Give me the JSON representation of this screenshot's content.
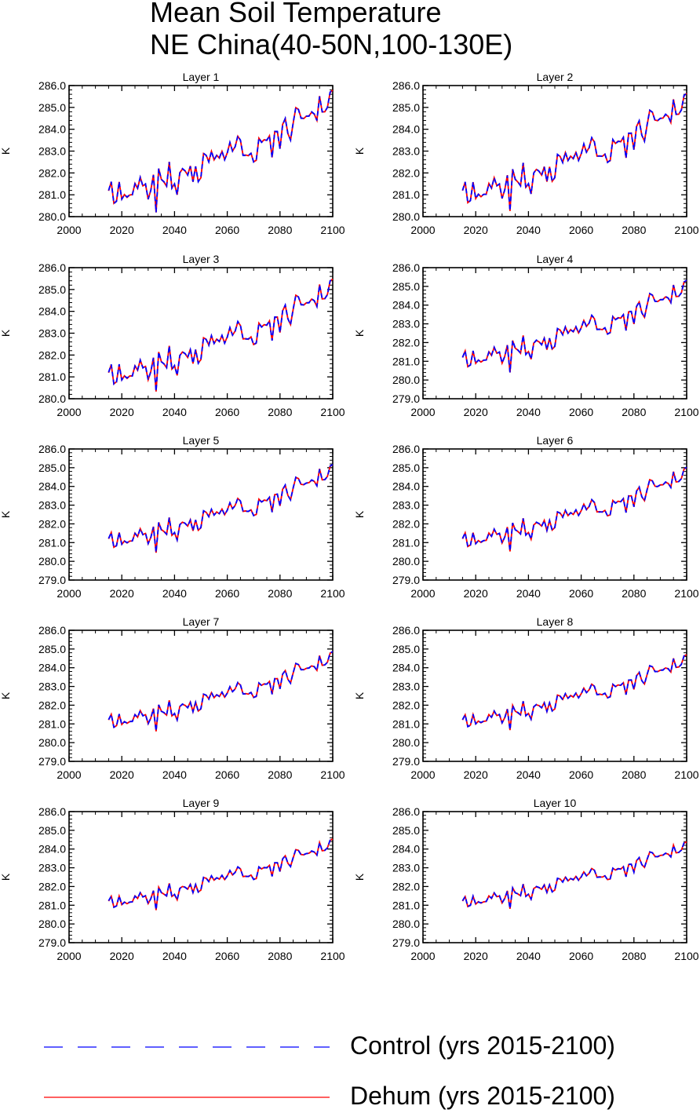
{
  "title": {
    "line1": "Mean Soil Temperature",
    "line2": "NE China(40-50N,100-130E)"
  },
  "legend": [
    {
      "label": "Control (yrs 2015-2100)",
      "color": "#0000ff",
      "style": "dashed"
    },
    {
      "label": "Dehum (yrs 2015-2100)",
      "color": "#ff0000",
      "style": "solid"
    }
  ],
  "chart_data": [
    {
      "type": "line",
      "title": "Layer 1",
      "ylabel": "K",
      "xlim": [
        2000,
        2100
      ],
      "ylim": [
        280.0,
        286.0
      ],
      "yticks": [
        "280.0",
        "281.0",
        "282.0",
        "283.0",
        "284.0",
        "285.0",
        "286.0"
      ],
      "xticks": [
        "2000",
        "2020",
        "2040",
        "2060",
        "2080",
        "2100"
      ]
    },
    {
      "type": "line",
      "title": "Layer 2",
      "ylabel": "K",
      "xlim": [
        2000,
        2100
      ],
      "ylim": [
        280.0,
        286.0
      ],
      "yticks": [
        "280.0",
        "281.0",
        "282.0",
        "283.0",
        "284.0",
        "285.0",
        "286.0"
      ],
      "xticks": [
        "2000",
        "2020",
        "2040",
        "2060",
        "2080",
        "2100"
      ]
    },
    {
      "type": "line",
      "title": "Layer 3",
      "ylabel": "K",
      "xlim": [
        2000,
        2100
      ],
      "ylim": [
        280.0,
        286.0
      ],
      "yticks": [
        "280.0",
        "281.0",
        "282.0",
        "283.0",
        "284.0",
        "285.0",
        "286.0"
      ],
      "xticks": [
        "2000",
        "2020",
        "2040",
        "2060",
        "2080",
        "2100"
      ]
    },
    {
      "type": "line",
      "title": "Layer 4",
      "ylabel": "K",
      "xlim": [
        2000,
        2100
      ],
      "ylim": [
        279.0,
        286.0
      ],
      "yticks": [
        "279.0",
        "280.0",
        "281.0",
        "282.0",
        "283.0",
        "284.0",
        "285.0",
        "286.0"
      ],
      "xticks": [
        "2000",
        "2020",
        "2040",
        "2060",
        "2080",
        "2100"
      ]
    },
    {
      "type": "line",
      "title": "Layer 5",
      "ylabel": "K",
      "xlim": [
        2000,
        2100
      ],
      "ylim": [
        279.0,
        286.0
      ],
      "yticks": [
        "279.0",
        "280.0",
        "281.0",
        "282.0",
        "283.0",
        "284.0",
        "285.0",
        "286.0"
      ],
      "xticks": [
        "2000",
        "2020",
        "2040",
        "2060",
        "2080",
        "2100"
      ]
    },
    {
      "type": "line",
      "title": "Layer 6",
      "ylabel": "K",
      "xlim": [
        2000,
        2100
      ],
      "ylim": [
        279.0,
        286.0
      ],
      "yticks": [
        "279.0",
        "280.0",
        "281.0",
        "282.0",
        "283.0",
        "284.0",
        "285.0",
        "286.0"
      ],
      "xticks": [
        "2000",
        "2020",
        "2040",
        "2060",
        "2080",
        "2100"
      ]
    },
    {
      "type": "line",
      "title": "Layer 7",
      "ylabel": "K",
      "xlim": [
        2000,
        2100
      ],
      "ylim": [
        279.0,
        286.0
      ],
      "yticks": [
        "279.0",
        "280.0",
        "281.0",
        "282.0",
        "283.0",
        "284.0",
        "285.0",
        "286.0"
      ],
      "xticks": [
        "2000",
        "2020",
        "2040",
        "2060",
        "2080",
        "2100"
      ]
    },
    {
      "type": "line",
      "title": "Layer 8",
      "ylabel": "K",
      "xlim": [
        2000,
        2100
      ],
      "ylim": [
        279.0,
        286.0
      ],
      "yticks": [
        "279.0",
        "280.0",
        "281.0",
        "282.0",
        "283.0",
        "284.0",
        "285.0",
        "286.0"
      ],
      "xticks": [
        "2000",
        "2020",
        "2040",
        "2060",
        "2080",
        "2100"
      ]
    },
    {
      "type": "line",
      "title": "Layer 9",
      "ylabel": "K",
      "xlim": [
        2000,
        2100
      ],
      "ylim": [
        279.0,
        286.0
      ],
      "yticks": [
        "279.0",
        "280.0",
        "281.0",
        "282.0",
        "283.0",
        "284.0",
        "285.0",
        "286.0"
      ],
      "xticks": [
        "2000",
        "2020",
        "2040",
        "2060",
        "2080",
        "2100"
      ]
    },
    {
      "type": "line",
      "title": "Layer 10",
      "ylabel": "K",
      "xlim": [
        2000,
        2100
      ],
      "ylim": [
        279.0,
        286.0
      ],
      "yticks": [
        "279.0",
        "280.0",
        "281.0",
        "282.0",
        "283.0",
        "284.0",
        "285.0",
        "286.0"
      ],
      "xticks": [
        "2000",
        "2020",
        "2040",
        "2060",
        "2080",
        "2100"
      ]
    }
  ],
  "series_shared": {
    "x": [
      2015,
      2016,
      2017,
      2018,
      2019,
      2020,
      2021,
      2022,
      2023,
      2024,
      2025,
      2026,
      2027,
      2028,
      2029,
      2030,
      2031,
      2032,
      2033,
      2034,
      2035,
      2036,
      2037,
      2038,
      2039,
      2040,
      2041,
      2042,
      2043,
      2044,
      2045,
      2046,
      2047,
      2048,
      2049,
      2050,
      2051,
      2052,
      2053,
      2054,
      2055,
      2056,
      2057,
      2058,
      2059,
      2060,
      2061,
      2062,
      2063,
      2064,
      2065,
      2066,
      2067,
      2068,
      2069,
      2070,
      2071,
      2072,
      2073,
      2074,
      2075,
      2076,
      2077,
      2078,
      2079,
      2080,
      2081,
      2082,
      2083,
      2084,
      2085,
      2086,
      2087,
      2088,
      2089,
      2090,
      2091,
      2092,
      2093,
      2094,
      2095,
      2096,
      2097,
      2098,
      2099,
      2100
    ],
    "layer1_control": [
      281.2,
      281.6,
      280.6,
      280.7,
      281.6,
      280.8,
      281.0,
      280.9,
      281.0,
      281.0,
      281.5,
      281.3,
      281.8,
      281.4,
      281.5,
      280.8,
      281.2,
      281.9,
      280.2,
      282.2,
      281.7,
      281.6,
      281.4,
      282.5,
      281.3,
      281.5,
      281.0,
      282.0,
      282.2,
      282.1,
      281.9,
      282.3,
      281.6,
      282.3,
      281.6,
      281.8,
      282.9,
      282.8,
      282.5,
      283.0,
      282.6,
      282.8,
      282.7,
      283.0,
      282.6,
      282.9,
      283.4,
      283.0,
      283.2,
      283.7,
      283.5,
      282.8,
      282.8,
      282.8,
      282.9,
      282.5,
      282.6,
      283.6,
      283.4,
      283.5,
      283.5,
      283.7,
      282.7,
      283.9,
      283.9,
      283.1,
      284.2,
      284.5,
      283.8,
      283.5,
      284.3,
      285.0,
      284.9,
      284.5,
      284.5,
      284.6,
      284.6,
      284.8,
      284.7,
      284.4,
      285.5,
      284.8,
      284.8,
      285.0,
      285.7,
      285.8
    ]
  }
}
